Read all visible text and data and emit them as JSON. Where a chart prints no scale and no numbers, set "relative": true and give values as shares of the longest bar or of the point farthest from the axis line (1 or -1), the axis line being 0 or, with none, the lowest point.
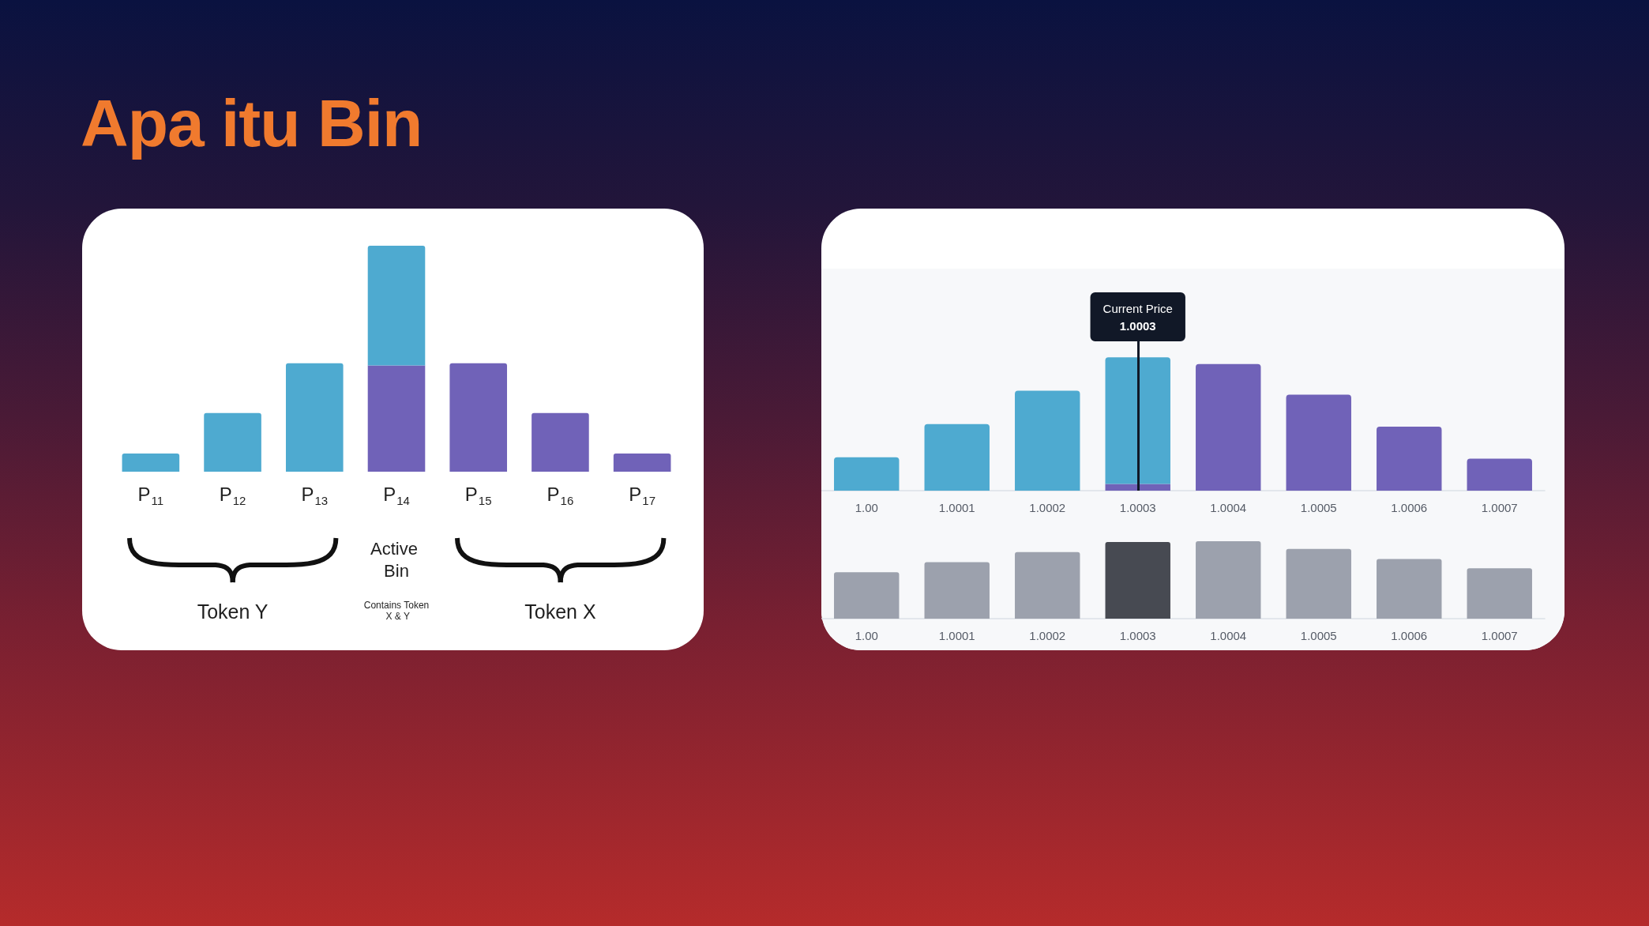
{
  "chart_data": [
    {
      "type": "bar",
      "title": "Apa itu Bin",
      "categories": [
        "P$_{11}$",
        "P$_{12}$",
        "P$_{13}$",
        "P$_{14}$",
        "P$_{15}$",
        "P$_{16}$",
        "P$_{17}$"
      ],
      "stacked": true,
      "relative": true,
      "series": [
        {
          "color": "#7062b8",
          "values": [
            null,
            null,
            null,
            0.47,
            0.48,
            0.26,
            0.08
          ]
        },
        {
          "color": "#4eaad0",
          "values": [
            0.08,
            0.26,
            0.48,
            0.53,
            null,
            null,
            null
          ]
        }
      ],
      "annotations": [
        "Token Y",
        "Active Bin",
        "Contains Token X & Y",
        "Token X"
      ]
    },
    {
      "type": "bar",
      "categories": [
        "1.00",
        "1.0001",
        "1.0002",
        "1.0003",
        "1.0004",
        "1.0005",
        "1.0006",
        "1.0007"
      ],
      "stacked": true,
      "relative": true,
      "series": [
        {
          "color": "#7062b8",
          "values": [
            null,
            null,
            null,
            0.05,
            0.95,
            0.72,
            0.48,
            0.24
          ]
        },
        {
          "color": "#4eaad0",
          "values": [
            0.25,
            0.5,
            0.75,
            0.95,
            null,
            null,
            null,
            null
          ]
        }
      ],
      "ref_lines": [
        {
          "axis": "x",
          "value": "1.0003",
          "label": "Current Price\n1.0003",
          "color": "#111827"
        }
      ]
    },
    {
      "type": "bar",
      "categories": [
        "1.00",
        "1.0001",
        "1.0002",
        "1.0003",
        "1.0004",
        "1.0005",
        "1.0006",
        "1.0007"
      ],
      "relative": true,
      "values": [
        0.6,
        0.73,
        0.86,
        0.99,
        1,
        0.9,
        0.77,
        0.65
      ],
      "colors": [
        "#9ca1ad",
        "#9ca1ad",
        "#9ca1ad",
        "#474a52",
        "#9ca1ad",
        "#9ca1ad",
        "#9ca1ad",
        "#9ca1ad"
      ]
    }
  ]
}
